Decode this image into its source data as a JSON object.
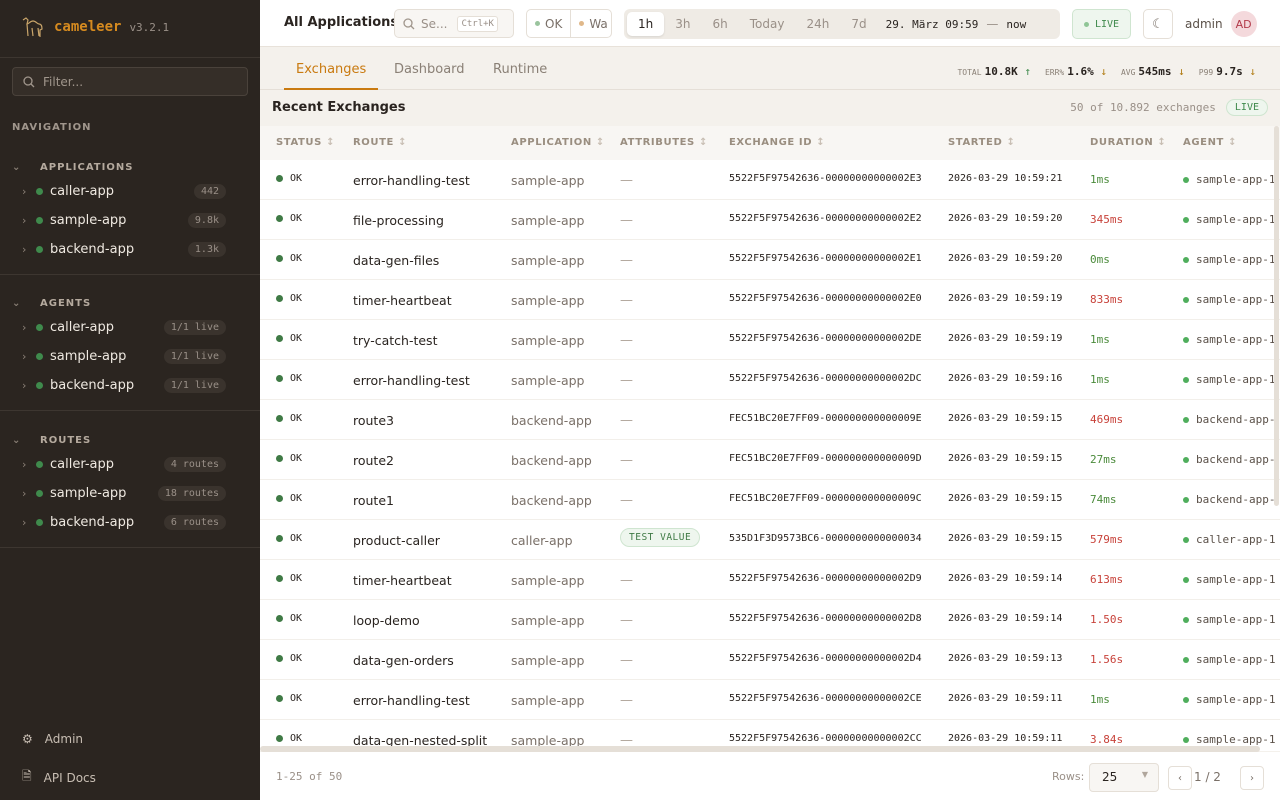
{
  "brand": {
    "name": "cameleer",
    "version": "v3.2.1"
  },
  "sidebar": {
    "filter_placeholder": "Filter...",
    "nav_label": "NAVIGATION",
    "sections": [
      {
        "title": "APPLICATIONS",
        "items": [
          {
            "label": "caller-app",
            "badge": "442"
          },
          {
            "label": "sample-app",
            "badge": "9.8k"
          },
          {
            "label": "backend-app",
            "badge": "1.3k"
          }
        ]
      },
      {
        "title": "AGENTS",
        "items": [
          {
            "label": "caller-app",
            "badge": "1/1 live"
          },
          {
            "label": "sample-app",
            "badge": "1/1 live"
          },
          {
            "label": "backend-app",
            "badge": "1/1 live"
          }
        ]
      },
      {
        "title": "ROUTES",
        "items": [
          {
            "label": "caller-app",
            "badge": "4 routes"
          },
          {
            "label": "sample-app",
            "badge": "18 routes"
          },
          {
            "label": "backend-app",
            "badge": "6 routes"
          }
        ]
      }
    ],
    "footer": [
      {
        "label": "Admin",
        "icon": "gear-icon"
      },
      {
        "label": "API Docs",
        "icon": "document-icon"
      }
    ]
  },
  "topbar": {
    "title": "All Applications",
    "search_placeholder": "Se...",
    "search_shortcut": "Ctrl+K",
    "status_filters": [
      "OK",
      "Wa"
    ],
    "ranges": [
      "1h",
      "3h",
      "6h",
      "Today",
      "24h",
      "7d"
    ],
    "active_range": "1h",
    "range_from": "29. März 09:59",
    "range_sep": "—",
    "range_to": "now",
    "live_label": "LIVE",
    "user": "admin",
    "avatar": "AD"
  },
  "tabs": [
    "Exchanges",
    "Dashboard",
    "Runtime"
  ],
  "kpis": [
    {
      "label": "TOTAL",
      "value": "10.8K",
      "trend": "↑"
    },
    {
      "label": "ERR%",
      "value": "1.6%",
      "trend": "↓"
    },
    {
      "label": "AVG",
      "value": "545ms",
      "trend": "↓"
    },
    {
      "label": "P99",
      "value": "9.7s",
      "trend": "↓"
    }
  ],
  "table": {
    "title": "Recent Exchanges",
    "count": "50 of 10.892 exchanges",
    "live": "LIVE",
    "columns": [
      "STATUS",
      "ROUTE",
      "APPLICATION",
      "ATTRIBUTES",
      "EXCHANGE ID",
      "STARTED",
      "DURATION",
      "AGENT"
    ],
    "rows": [
      {
        "status": "OK",
        "route": "error-handling-test",
        "app": "sample-app",
        "attr": "—",
        "id": "5522F5F97542636-00000000000002E3",
        "started": "2026-03-29 10:59:21",
        "duration": "1ms",
        "slow": false,
        "agent": "sample-app-1"
      },
      {
        "status": "OK",
        "route": "file-processing",
        "app": "sample-app",
        "attr": "—",
        "id": "5522F5F97542636-00000000000002E2",
        "started": "2026-03-29 10:59:20",
        "duration": "345ms",
        "slow": true,
        "agent": "sample-app-1"
      },
      {
        "status": "OK",
        "route": "data-gen-files",
        "app": "sample-app",
        "attr": "—",
        "id": "5522F5F97542636-00000000000002E1",
        "started": "2026-03-29 10:59:20",
        "duration": "0ms",
        "slow": false,
        "agent": "sample-app-1"
      },
      {
        "status": "OK",
        "route": "timer-heartbeat",
        "app": "sample-app",
        "attr": "—",
        "id": "5522F5F97542636-00000000000002E0",
        "started": "2026-03-29 10:59:19",
        "duration": "833ms",
        "slow": true,
        "agent": "sample-app-1"
      },
      {
        "status": "OK",
        "route": "try-catch-test",
        "app": "sample-app",
        "attr": "—",
        "id": "5522F5F97542636-00000000000002DE",
        "started": "2026-03-29 10:59:19",
        "duration": "1ms",
        "slow": false,
        "agent": "sample-app-1"
      },
      {
        "status": "OK",
        "route": "error-handling-test",
        "app": "sample-app",
        "attr": "—",
        "id": "5522F5F97542636-00000000000002DC",
        "started": "2026-03-29 10:59:16",
        "duration": "1ms",
        "slow": false,
        "agent": "sample-app-1"
      },
      {
        "status": "OK",
        "route": "route3",
        "app": "backend-app",
        "attr": "—",
        "id": "FEC51BC20E7FF09-000000000000009E",
        "started": "2026-03-29 10:59:15",
        "duration": "469ms",
        "slow": true,
        "agent": "backend-app-"
      },
      {
        "status": "OK",
        "route": "route2",
        "app": "backend-app",
        "attr": "—",
        "id": "FEC51BC20E7FF09-000000000000009D",
        "started": "2026-03-29 10:59:15",
        "duration": "27ms",
        "slow": false,
        "agent": "backend-app-"
      },
      {
        "status": "OK",
        "route": "route1",
        "app": "backend-app",
        "attr": "—",
        "id": "FEC51BC20E7FF09-000000000000009C",
        "started": "2026-03-29 10:59:15",
        "duration": "74ms",
        "slow": false,
        "agent": "backend-app-"
      },
      {
        "status": "OK",
        "route": "product-caller",
        "app": "caller-app",
        "attr": "TEST VALUE",
        "id": "535D1F3D9573BC6-0000000000000034",
        "started": "2026-03-29 10:59:15",
        "duration": "579ms",
        "slow": true,
        "agent": "caller-app-1"
      },
      {
        "status": "OK",
        "route": "timer-heartbeat",
        "app": "sample-app",
        "attr": "—",
        "id": "5522F5F97542636-00000000000002D9",
        "started": "2026-03-29 10:59:14",
        "duration": "613ms",
        "slow": true,
        "agent": "sample-app-1"
      },
      {
        "status": "OK",
        "route": "loop-demo",
        "app": "sample-app",
        "attr": "—",
        "id": "5522F5F97542636-00000000000002D8",
        "started": "2026-03-29 10:59:14",
        "duration": "1.50s",
        "slow": true,
        "agent": "sample-app-1"
      },
      {
        "status": "OK",
        "route": "data-gen-orders",
        "app": "sample-app",
        "attr": "—",
        "id": "5522F5F97542636-00000000000002D4",
        "started": "2026-03-29 10:59:13",
        "duration": "1.56s",
        "slow": true,
        "agent": "sample-app-1"
      },
      {
        "status": "OK",
        "route": "error-handling-test",
        "app": "sample-app",
        "attr": "—",
        "id": "5522F5F97542636-00000000000002CE",
        "started": "2026-03-29 10:59:11",
        "duration": "1ms",
        "slow": false,
        "agent": "sample-app-1"
      },
      {
        "status": "OK",
        "route": "data-gen-nested-split",
        "app": "sample-app",
        "attr": "—",
        "id": "5522F5F97542636-00000000000002CC",
        "started": "2026-03-29 10:59:11",
        "duration": "3.84s",
        "slow": true,
        "agent": "sample-app-1"
      }
    ]
  },
  "pager": {
    "range": "1-25 of 50",
    "rows_label": "Rows:",
    "rows_value": "25",
    "page": "1 / 2",
    "prev": "‹",
    "next": "›"
  },
  "colors": {
    "accent": "#c97a10",
    "ok": "#3f7a45",
    "slow": "#c8423a",
    "fast": "#4a8a3a",
    "sidebar": "#2b2520"
  }
}
